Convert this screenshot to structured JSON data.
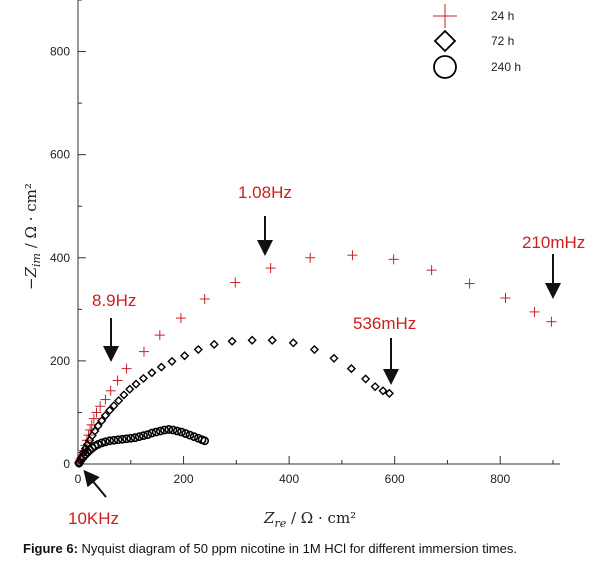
{
  "figure": {
    "caption_label": "Figure 6:",
    "caption_text": " Nyquist diagram of 50 ppm nicotine in 1M HCl for different immersion times."
  },
  "chart_data": {
    "type": "scatter",
    "title": "",
    "xlabel": {
      "main": "Z",
      "sub": "re",
      "units": "/ Ω · cm²"
    },
    "ylabel": {
      "prefix": "−Z",
      "sub": "im",
      "units": "/ Ω · cm²"
    },
    "xlim": [
      0,
      900
    ],
    "ylim": [
      0,
      900
    ],
    "x_ticks": [
      0,
      200,
      400,
      600,
      800
    ],
    "y_ticks": [
      0,
      200,
      400,
      600,
      800
    ],
    "grid": false,
    "legend_placement": "top-right",
    "series": [
      {
        "name": "24 h",
        "marker": "plus",
        "color": "#c8202a",
        "points": [
          [
            2,
            2
          ],
          [
            5,
            10
          ],
          [
            8,
            18
          ],
          [
            11,
            26
          ],
          [
            14,
            36
          ],
          [
            17,
            46
          ],
          [
            20,
            56
          ],
          [
            23,
            66
          ],
          [
            26,
            76
          ],
          [
            30,
            88
          ],
          [
            35,
            100
          ],
          [
            42,
            112
          ],
          [
            52,
            125
          ],
          [
            62,
            142
          ],
          [
            75,
            162
          ],
          [
            92,
            185
          ],
          [
            125,
            218
          ],
          [
            155,
            250
          ],
          [
            195,
            283
          ],
          [
            240,
            320
          ],
          [
            298,
            352
          ],
          [
            365,
            380
          ],
          [
            440,
            400
          ],
          [
            520,
            405
          ],
          [
            598,
            397
          ],
          [
            670,
            376
          ],
          [
            742,
            350
          ],
          [
            810,
            322
          ],
          [
            865,
            295
          ],
          [
            897,
            276
          ]
        ]
      },
      {
        "name": "72 h",
        "marker": "diamond",
        "color": "#000000",
        "points": [
          [
            2,
            2
          ],
          [
            6,
            12
          ],
          [
            10,
            22
          ],
          [
            14,
            30
          ],
          [
            18,
            38
          ],
          [
            22,
            46
          ],
          [
            27,
            55
          ],
          [
            32,
            64
          ],
          [
            38,
            74
          ],
          [
            45,
            84
          ],
          [
            52,
            94
          ],
          [
            60,
            104
          ],
          [
            68,
            113
          ],
          [
            77,
            123
          ],
          [
            87,
            134
          ],
          [
            98,
            145
          ],
          [
            110,
            155
          ],
          [
            124,
            166
          ],
          [
            140,
            177
          ],
          [
            158,
            188
          ],
          [
            178,
            199
          ],
          [
            202,
            210
          ],
          [
            228,
            222
          ],
          [
            258,
            232
          ],
          [
            292,
            238
          ],
          [
            330,
            240
          ],
          [
            368,
            240
          ],
          [
            408,
            235
          ],
          [
            448,
            222
          ],
          [
            485,
            205
          ],
          [
            518,
            185
          ],
          [
            545,
            165
          ],
          [
            563,
            150
          ],
          [
            578,
            142
          ],
          [
            590,
            137
          ]
        ]
      },
      {
        "name": "240 h",
        "marker": "circle",
        "color": "#000000",
        "points": [
          [
            2,
            2
          ],
          [
            6,
            9
          ],
          [
            10,
            14
          ],
          [
            14,
            19
          ],
          [
            18,
            23
          ],
          [
            22,
            27
          ],
          [
            27,
            31
          ],
          [
            32,
            35
          ],
          [
            38,
            38
          ],
          [
            45,
            41
          ],
          [
            52,
            43
          ],
          [
            60,
            45
          ],
          [
            68,
            46
          ],
          [
            76,
            47
          ],
          [
            84,
            48
          ],
          [
            92,
            49
          ],
          [
            100,
            50
          ],
          [
            108,
            51
          ],
          [
            116,
            53
          ],
          [
            124,
            55
          ],
          [
            132,
            57
          ],
          [
            140,
            60
          ],
          [
            148,
            62
          ],
          [
            156,
            64
          ],
          [
            164,
            66
          ],
          [
            172,
            67
          ],
          [
            180,
            66
          ],
          [
            188,
            64
          ],
          [
            196,
            62
          ],
          [
            204,
            59
          ],
          [
            212,
            56
          ],
          [
            220,
            53
          ],
          [
            228,
            50
          ],
          [
            235,
            47
          ],
          [
            240,
            45
          ]
        ]
      }
    ],
    "annotations": [
      {
        "text": "10KHz",
        "x": 2,
        "y": 2,
        "arrow": "up-left"
      },
      {
        "text": "8.9Hz",
        "x": 62,
        "y": 202,
        "arrow": "down"
      },
      {
        "text": "1.08Hz",
        "x": 365,
        "y": 410,
        "arrow": "down"
      },
      {
        "text": "536mHz",
        "x": 592,
        "y": 167,
        "arrow": "down"
      },
      {
        "text": "210mHz",
        "x": 897,
        "y": 320,
        "arrow": "down"
      }
    ]
  }
}
